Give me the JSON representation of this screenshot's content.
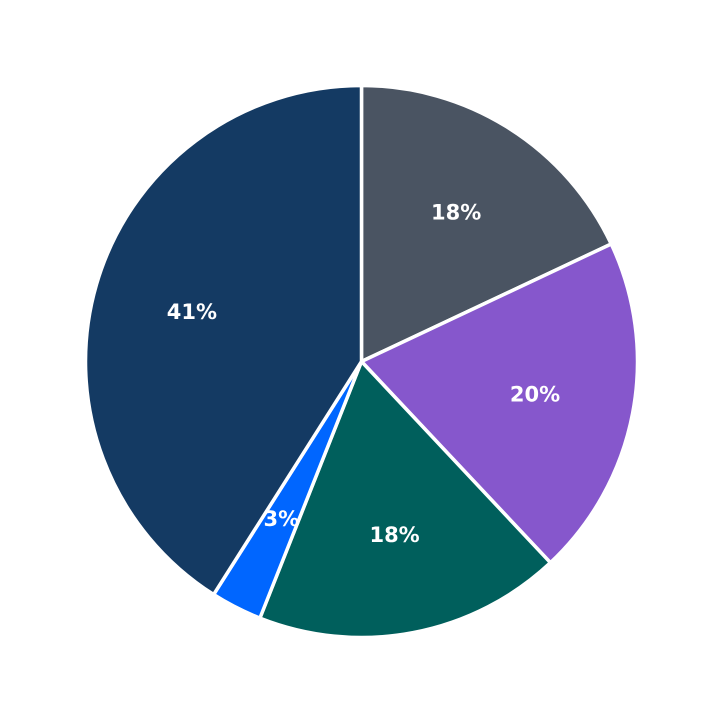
{
  "chart_data": {
    "type": "pie",
    "start_angle_deg": 90,
    "direction": "clockwise",
    "legend": "none",
    "slices": [
      {
        "value": 18,
        "label": "18%",
        "color": "#4a5462"
      },
      {
        "value": 20,
        "label": "20%",
        "color": "#8657cc"
      },
      {
        "value": 18,
        "label": "18%",
        "color": "#005f5c"
      },
      {
        "value": 3,
        "label": "3%",
        "color": "#0066ff"
      },
      {
        "value": 41,
        "label": "41%",
        "color": "#143a63"
      }
    ]
  }
}
